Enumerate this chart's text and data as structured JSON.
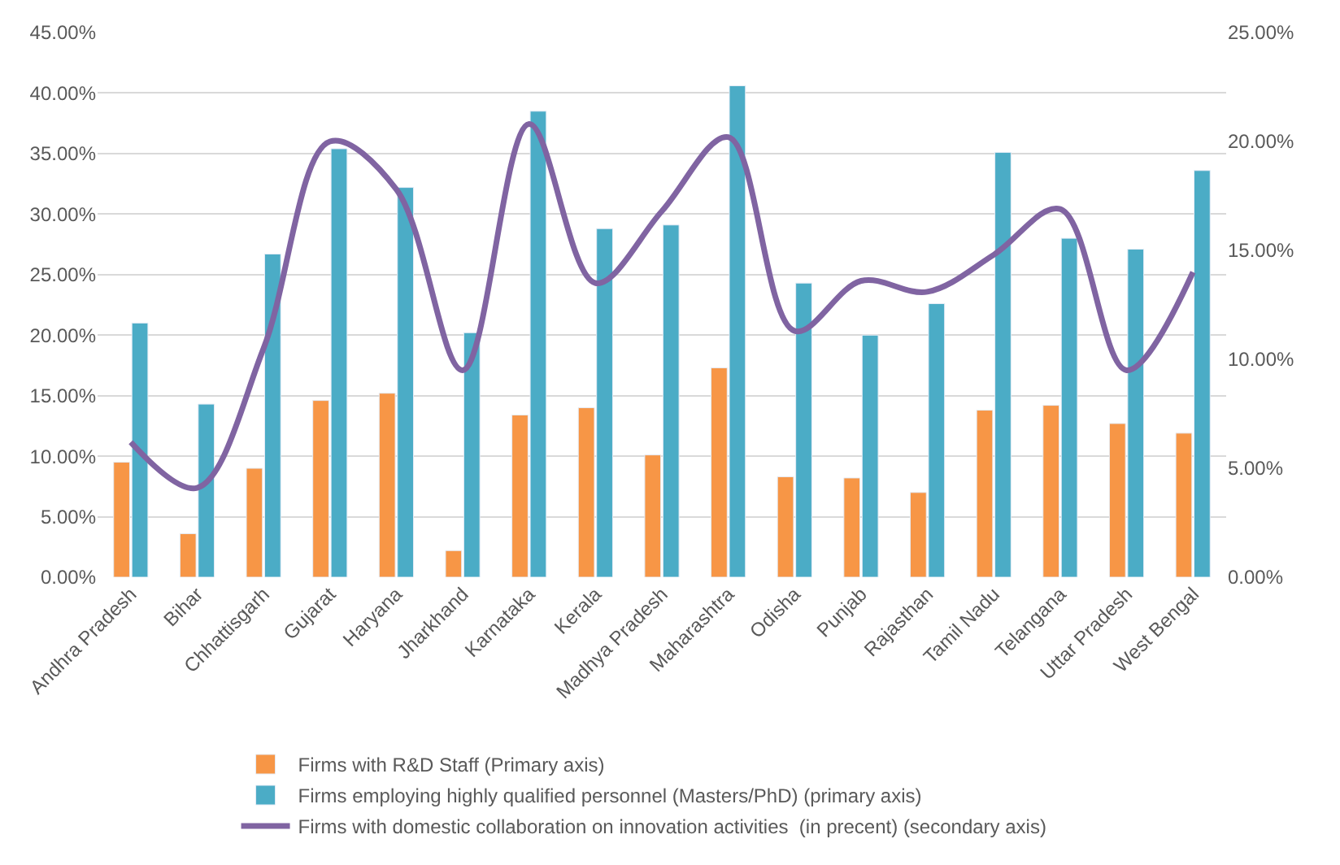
{
  "chart_data": {
    "type": "bar",
    "categories": [
      "Andhra Pradesh",
      "Bihar",
      "Chhattisgarh",
      "Gujarat",
      "Haryana",
      "Jharkhand",
      "Karnataka",
      "Kerala",
      "Madhya Pradesh",
      "Maharashtra",
      "Odisha",
      "Punjab",
      "Rajasthan",
      "Tamil Nadu",
      "Telangana",
      "Uttar Pradesh",
      "West Bengal"
    ],
    "series": [
      {
        "name": "Firms with R&D Staff (Primary axis)",
        "color": "#f79646",
        "values": [
          9.5,
          3.6,
          9.0,
          14.6,
          15.2,
          2.2,
          13.4,
          14.0,
          10.1,
          17.3,
          8.3,
          8.2,
          7.0,
          13.8,
          14.2,
          12.7,
          11.9
        ]
      },
      {
        "name": "Firms employing highly qualified personnel (Masters/PhD) (primary axis)",
        "color": "#4bacc6",
        "values": [
          21.0,
          14.3,
          26.7,
          35.4,
          32.2,
          20.2,
          38.5,
          28.8,
          29.1,
          40.6,
          24.3,
          20.0,
          22.6,
          35.1,
          28.0,
          27.1,
          33.6
        ]
      },
      {
        "name": "Firms with domestic collaboration on innovation activities  (in precent) (secondary axis)",
        "color": "#8064a2",
        "type": "line",
        "axis": "y2",
        "marker": "none",
        "line_style": "solid",
        "values": [
          6.2,
          4.1,
          10.5,
          20.0,
          17.8,
          9.5,
          20.8,
          13.5,
          16.8,
          20.2,
          11.3,
          13.6,
          13.1,
          14.8,
          16.9,
          9.5,
          14.0
        ]
      }
    ],
    "ylim": [
      0,
      45
    ],
    "yticks": [
      {
        "value": 0,
        "label": "0.00%"
      },
      {
        "value": 5,
        "label": "5.00%"
      },
      {
        "value": 10,
        "label": "10.00%"
      },
      {
        "value": 15,
        "label": "15.00%"
      },
      {
        "value": 20,
        "label": "20.00%"
      },
      {
        "value": 25,
        "label": "25.00%"
      },
      {
        "value": 30,
        "label": "30.00%"
      },
      {
        "value": 35,
        "label": "35.00%"
      },
      {
        "value": 40,
        "label": "40.00%"
      },
      {
        "value": 45,
        "label": "45.00%"
      }
    ],
    "y2lim": [
      0,
      25
    ],
    "y2ticks": [
      {
        "value": 0,
        "label": "0.00%"
      },
      {
        "value": 5,
        "label": "5.00%"
      },
      {
        "value": 10,
        "label": "10.00%"
      },
      {
        "value": 15,
        "label": "15.00%"
      },
      {
        "value": 20,
        "label": "20.00%"
      },
      {
        "value": 25,
        "label": "25.00%"
      }
    ],
    "grid": "y",
    "legend": "bottom"
  }
}
